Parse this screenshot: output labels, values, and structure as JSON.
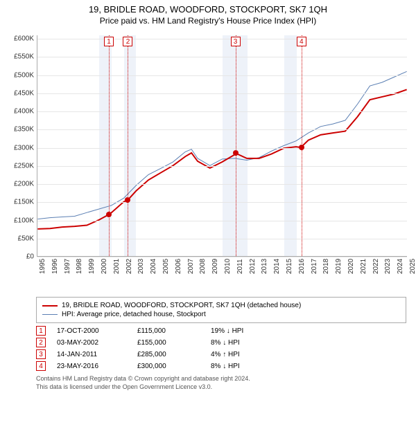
{
  "title": "19, BRIDLE ROAD, WOODFORD, STOCKPORT, SK7 1QH",
  "subtitle": "Price paid vs. HM Land Registry's House Price Index (HPI)",
  "chart": {
    "type": "line",
    "x_years": [
      1995,
      1996,
      1997,
      1998,
      1999,
      2000,
      2001,
      2002,
      2003,
      2004,
      2005,
      2006,
      2007,
      2008,
      2009,
      2010,
      2011,
      2012,
      2013,
      2014,
      2015,
      2016,
      2017,
      2018,
      2019,
      2020,
      2021,
      2022,
      2023,
      2024,
      2025
    ],
    "y_ticks": [
      0,
      50000,
      100000,
      150000,
      200000,
      250000,
      300000,
      350000,
      400000,
      450000,
      500000,
      550000,
      600000
    ],
    "y_tick_labels": [
      "£0",
      "£50K",
      "£100K",
      "£150K",
      "£200K",
      "£250K",
      "£300K",
      "£350K",
      "£400K",
      "£450K",
      "£500K",
      "£550K",
      "£600K"
    ],
    "y_max": 610000,
    "line_color_price": "#cc0000",
    "line_color_hpi": "#5b7fb3",
    "line_width_price": 2,
    "line_width_hpi": 1,
    "grid_color": "#e6e6e6",
    "background_color": "#ffffff",
    "band_color": "#eef2f9",
    "shaded_bands": [
      [
        2000,
        2001
      ],
      [
        2002,
        2003
      ],
      [
        2010,
        2012
      ],
      [
        2015,
        2016
      ]
    ],
    "series_price": [
      [
        1995,
        75000
      ],
      [
        1996,
        76000
      ],
      [
        1997,
        80000
      ],
      [
        1998,
        82000
      ],
      [
        1999,
        85000
      ],
      [
        2000,
        100000
      ],
      [
        2000.8,
        115000
      ],
      [
        2001,
        120000
      ],
      [
        2002,
        150000
      ],
      [
        2002.33,
        155000
      ],
      [
        2003,
        180000
      ],
      [
        2004,
        210000
      ],
      [
        2005,
        230000
      ],
      [
        2006,
        250000
      ],
      [
        2007,
        275000
      ],
      [
        2007.5,
        285000
      ],
      [
        2008,
        262000
      ],
      [
        2009,
        243000
      ],
      [
        2010,
        260000
      ],
      [
        2011,
        280000
      ],
      [
        2011.04,
        285000
      ],
      [
        2012,
        270000
      ],
      [
        2013,
        270000
      ],
      [
        2014,
        282000
      ],
      [
        2015,
        298000
      ],
      [
        2016,
        302000
      ],
      [
        2016.39,
        300000
      ],
      [
        2017,
        320000
      ],
      [
        2018,
        335000
      ],
      [
        2019,
        340000
      ],
      [
        2020,
        345000
      ],
      [
        2021,
        385000
      ],
      [
        2022,
        432000
      ],
      [
        2023,
        440000
      ],
      [
        2024,
        448000
      ],
      [
        2025,
        460000
      ]
    ],
    "series_hpi": [
      [
        1995,
        102000
      ],
      [
        1996,
        106000
      ],
      [
        1997,
        108000
      ],
      [
        1998,
        110000
      ],
      [
        1999,
        120000
      ],
      [
        2000,
        130000
      ],
      [
        2001,
        140000
      ],
      [
        2002,
        160000
      ],
      [
        2003,
        195000
      ],
      [
        2004,
        225000
      ],
      [
        2005,
        242000
      ],
      [
        2006,
        260000
      ],
      [
        2007,
        288000
      ],
      [
        2007.5,
        295000
      ],
      [
        2008,
        270000
      ],
      [
        2009,
        250000
      ],
      [
        2010,
        268000
      ],
      [
        2011,
        270000
      ],
      [
        2012,
        265000
      ],
      [
        2013,
        272000
      ],
      [
        2014,
        290000
      ],
      [
        2015,
        305000
      ],
      [
        2016,
        318000
      ],
      [
        2017,
        340000
      ],
      [
        2018,
        358000
      ],
      [
        2019,
        365000
      ],
      [
        2020,
        375000
      ],
      [
        2021,
        420000
      ],
      [
        2022,
        470000
      ],
      [
        2023,
        480000
      ],
      [
        2024,
        495000
      ],
      [
        2025,
        510000
      ]
    ],
    "markers": [
      {
        "n": "1",
        "year": 2000.79,
        "price": 115000
      },
      {
        "n": "2",
        "year": 2002.33,
        "price": 155000
      },
      {
        "n": "3",
        "year": 2011.04,
        "price": 285000
      },
      {
        "n": "4",
        "year": 2016.39,
        "price": 300000
      }
    ]
  },
  "legend": {
    "row1": "19, BRIDLE ROAD, WOODFORD, STOCKPORT, SK7 1QH (detached house)",
    "row2": "HPI: Average price, detached house, Stockport"
  },
  "sales": [
    {
      "n": "1",
      "date": "17-OCT-2000",
      "price": "£115,000",
      "diff": "19% ↓ HPI"
    },
    {
      "n": "2",
      "date": "03-MAY-2002",
      "price": "£155,000",
      "diff": "8% ↓ HPI"
    },
    {
      "n": "3",
      "date": "14-JAN-2011",
      "price": "£285,000",
      "diff": "4% ↑ HPI"
    },
    {
      "n": "4",
      "date": "23-MAY-2016",
      "price": "£300,000",
      "diff": "8% ↓ HPI"
    }
  ],
  "footer1": "Contains HM Land Registry data © Crown copyright and database right 2024.",
  "footer2": "This data is licensed under the Open Government Licence v3.0."
}
